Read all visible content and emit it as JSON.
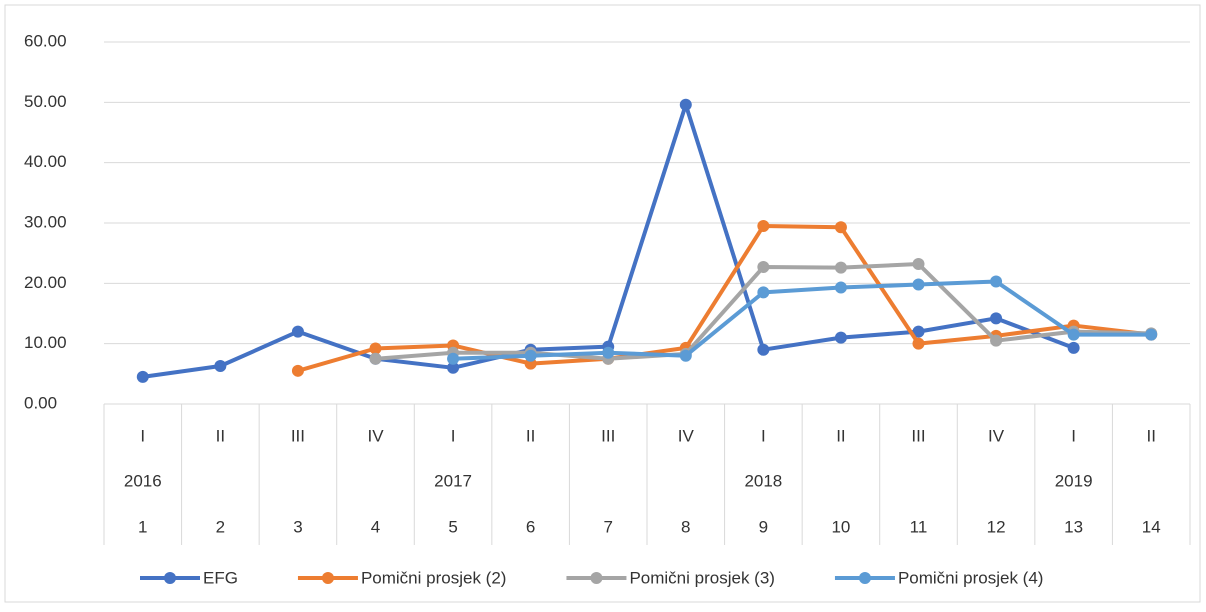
{
  "chart_data": {
    "type": "line",
    "categories": [
      "I",
      "II",
      "III",
      "IV",
      "I",
      "II",
      "III",
      "IV",
      "I",
      "II",
      "III",
      "IV",
      "I",
      "II"
    ],
    "years": [
      "2016",
      null,
      null,
      null,
      "2017",
      null,
      null,
      null,
      "2018",
      null,
      null,
      null,
      "2019",
      null
    ],
    "indexes": [
      "1",
      "2",
      "3",
      "4",
      "5",
      "6",
      "7",
      "8",
      "9",
      "10",
      "11",
      "12",
      "13",
      "14"
    ],
    "series": [
      {
        "name": "EFG",
        "color": "#4472c4",
        "values": [
          4.5,
          6.3,
          12,
          7.5,
          6,
          9,
          9.5,
          49.6,
          9,
          11,
          12,
          14.2,
          9.3,
          null
        ]
      },
      {
        "name": "Pomični prosjek (2)",
        "color": "#ed7d31",
        "values": [
          null,
          null,
          5.5,
          9.2,
          9.7,
          6.7,
          7.5,
          9.3,
          29.5,
          29.3,
          10,
          11.3,
          13,
          11.5
        ]
      },
      {
        "name": "Pomični prosjek (3)",
        "color": "#a5a5a5",
        "values": [
          null,
          null,
          null,
          7.5,
          8.5,
          8.5,
          7.5,
          8.3,
          22.7,
          22.6,
          23.2,
          10.5,
          12,
          11.7
        ]
      },
      {
        "name": "Pomični prosjek (4)",
        "color": "#5b9bd5",
        "values": [
          null,
          null,
          null,
          null,
          7.5,
          8,
          8.5,
          8,
          18.5,
          19.3,
          19.8,
          20.3,
          11.5,
          11.5
        ]
      }
    ],
    "ylim": [
      0,
      60
    ],
    "yticks": [
      {
        "value": 0,
        "label": "0.00"
      },
      {
        "value": 10,
        "label": "10.00"
      },
      {
        "value": 20,
        "label": "20.00"
      },
      {
        "value": 30,
        "label": "30.00"
      },
      {
        "value": 40,
        "label": "40.00"
      },
      {
        "value": 50,
        "label": "50.00"
      },
      {
        "value": 60,
        "label": "60.00"
      }
    ],
    "grid": true,
    "legend": "bottom"
  }
}
